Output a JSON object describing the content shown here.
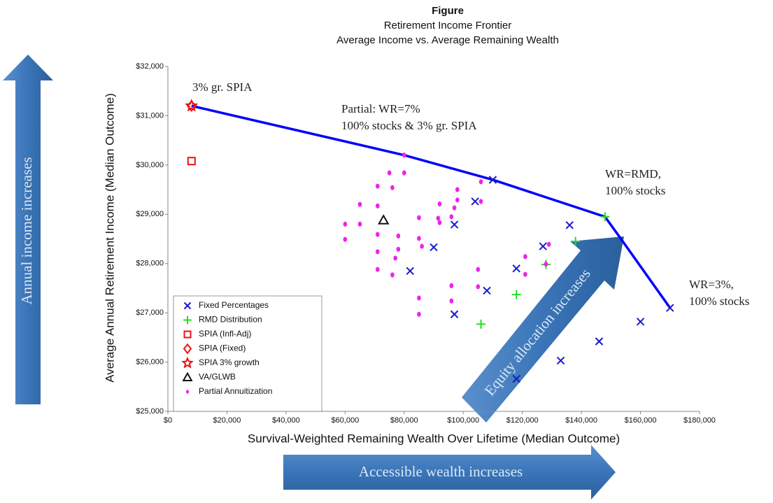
{
  "chart_data": {
    "type": "scatter",
    "title": "Figure",
    "subtitle": [
      "Retirement Income Frontier",
      "Average Income vs. Average Remaining Wealth"
    ],
    "x_label": "Survival-Weighted Remaining Wealth Over Lifetime (Median Outcome)",
    "y_label": "Average Annual Retirement Income (Median Outcome)",
    "xlim": [
      0,
      180000
    ],
    "ylim": [
      25000,
      32000
    ],
    "xticks": [
      {
        "value": 0,
        "label": "$0"
      },
      {
        "value": 20000,
        "label": "$20,000"
      },
      {
        "value": 40000,
        "label": "$40,000"
      },
      {
        "value": 60000,
        "label": "$60,000"
      },
      {
        "value": 80000,
        "label": "$80,000"
      },
      {
        "value": 100000,
        "label": "$100,000"
      },
      {
        "value": 120000,
        "label": "$120,000"
      },
      {
        "value": 140000,
        "label": "$140,000"
      },
      {
        "value": 160000,
        "label": "$160,000"
      },
      {
        "value": 180000,
        "label": "$180,000"
      }
    ],
    "yticks": [
      {
        "value": 25000,
        "label": "$25,000"
      },
      {
        "value": 26000,
        "label": "$26,000"
      },
      {
        "value": 27000,
        "label": "$27,000"
      },
      {
        "value": 28000,
        "label": "$28,000"
      },
      {
        "value": 29000,
        "label": "$29,000"
      },
      {
        "value": 30000,
        "label": "$30,000"
      },
      {
        "value": 31000,
        "label": "$31,000"
      },
      {
        "value": 32000,
        "label": "$32,000"
      }
    ],
    "frontier": {
      "type": "line",
      "color": "#0000ff",
      "x": [
        8000,
        80000,
        110000,
        148000,
        154000,
        170000
      ],
      "values": [
        31200,
        30200,
        29700,
        28950,
        28450,
        27100
      ]
    },
    "series": [
      {
        "name": "Fixed Percentages",
        "marker": "x",
        "color": "#1a1acc",
        "x": [
          110000,
          104000,
          97000,
          90000,
          82000,
          108000,
          118000,
          127000,
          136000,
          170000,
          160000,
          146000,
          133000,
          118000,
          97000
        ],
        "values": [
          29700,
          29260,
          28790,
          28330,
          27850,
          27450,
          27900,
          28350,
          28780,
          27100,
          26820,
          26420,
          26030,
          25660,
          26970
        ]
      },
      {
        "name": "RMD Distribution",
        "marker": "plus",
        "color": "#22dd22",
        "x": [
          148000,
          138000,
          128000,
          118000,
          106000
        ],
        "values": [
          28950,
          28450,
          27980,
          27370,
          26770
        ]
      },
      {
        "name": "SPIA (Infl-Adj)",
        "marker": "square",
        "color": "#ee1111",
        "x": [
          8000
        ],
        "values": [
          30080
        ]
      },
      {
        "name": "SPIA (Fixed)",
        "marker": "diamond",
        "color": "#ee1111",
        "x": [
          8000
        ],
        "values": [
          31200
        ]
      },
      {
        "name": "SPIA 3% growth",
        "marker": "star",
        "color": "#ee1111",
        "x": [
          8000
        ],
        "values": [
          31200
        ]
      },
      {
        "name": "VA/GLWB",
        "marker": "triangle",
        "color": "#111111",
        "x": [
          73000
        ],
        "values": [
          28880
        ]
      },
      {
        "name": "Partial Annuitization",
        "marker": "dot",
        "color": "#ee22ee",
        "x": [
          80000,
          75000,
          80000,
          71000,
          76000,
          98000,
          106000,
          71000,
          65000,
          98000,
          106000,
          92000,
          97000,
          85000,
          91500,
          92000,
          96000,
          60000,
          65000,
          60000,
          78000,
          71000,
          85000,
          86000,
          78000,
          71000,
          77000,
          121000,
          129000,
          128000,
          105000,
          71000,
          76000,
          121000,
          96000,
          105000,
          85000,
          96000,
          85000
        ],
        "values": [
          30200,
          29840,
          29840,
          29570,
          29540,
          29500,
          29660,
          29170,
          29200,
          29290,
          29260,
          29210,
          29130,
          28930,
          28920,
          28830,
          28950,
          28800,
          28800,
          28490,
          28560,
          28590,
          28510,
          28350,
          28290,
          28240,
          28110,
          28140,
          28390,
          27990,
          27880,
          27880,
          27770,
          27780,
          27550,
          27530,
          27300,
          27240,
          26970
        ]
      }
    ],
    "annotations": [
      [
        "3%  gr. SPIA"
      ],
      [
        "Partial: WR=7%",
        "100% stocks & 3% gr. SPIA"
      ],
      [
        "WR=RMD,",
        "100% stocks"
      ],
      [
        "WR=3%,",
        "100% stocks"
      ]
    ],
    "arrows": [
      "Annual income increases",
      "Equity allocation increases",
      "Accessible wealth increases"
    ]
  }
}
